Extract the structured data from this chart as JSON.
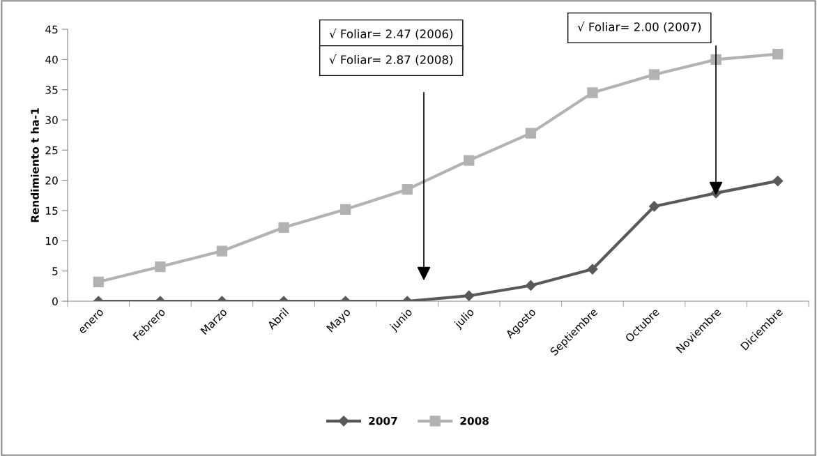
{
  "chart_data": {
    "type": "line",
    "ylabel": "Rendimiento t ha-1",
    "categories": [
      "enero",
      "Febrero",
      "Marzo",
      "Abril",
      "Mayo",
      "junio",
      "julio",
      "Agosto",
      "Septiembre",
      "Octubre",
      "Noviembre",
      "Diciembre"
    ],
    "series": [
      {
        "name": "2007",
        "color": "#595959",
        "marker": "diamond",
        "values": [
          0,
          0,
          0,
          0,
          0,
          0,
          0.9,
          2.6,
          5.3,
          15.7,
          17.9,
          19.9
        ]
      },
      {
        "name": "2008",
        "color": "#b2b2b2",
        "marker": "square",
        "values": [
          3.2,
          5.7,
          8.3,
          12.2,
          15.2,
          18.5,
          23.3,
          27.8,
          34.5,
          37.5,
          40,
          40.9
        ]
      }
    ],
    "ylim": [
      0,
      45
    ],
    "yticks": [
      0,
      5,
      10,
      15,
      20,
      25,
      30,
      35,
      40,
      45
    ],
    "grid": false,
    "legend": "bottom",
    "annotations": [
      "√ Foliar= 2.47 (2006)",
      "√ Foliar= 2.87 (2008)",
      "√ Foliar= 2.00 (2007)"
    ]
  }
}
